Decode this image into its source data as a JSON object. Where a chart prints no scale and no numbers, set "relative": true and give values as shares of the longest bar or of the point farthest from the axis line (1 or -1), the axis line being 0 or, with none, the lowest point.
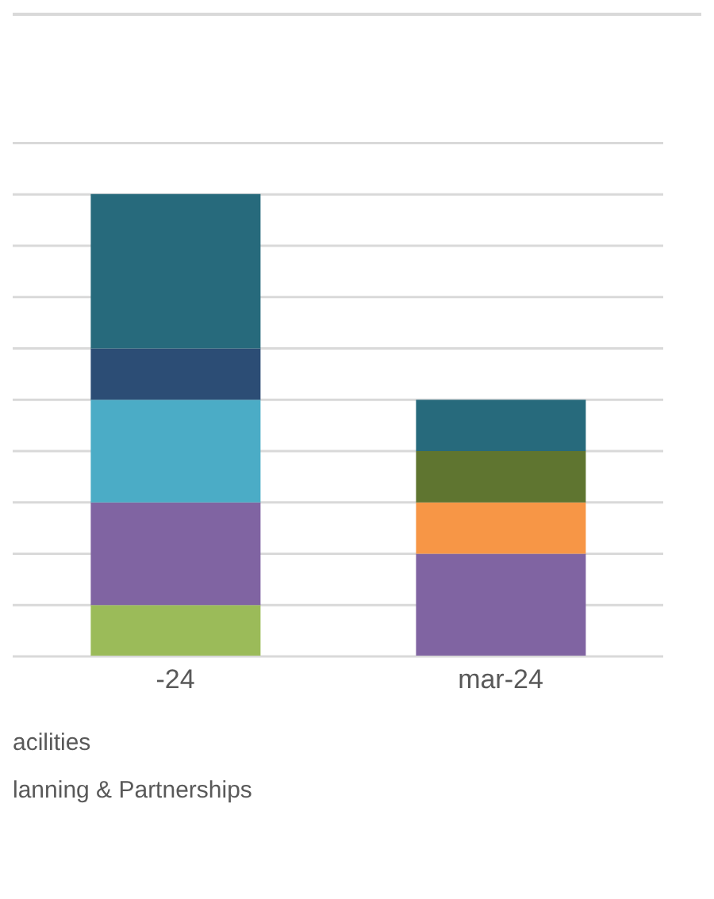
{
  "chart_data": {
    "type": "bar",
    "stacked": true,
    "relative": true,
    "grid": "y",
    "legend": false,
    "categories": [
      "-24",
      "mar-24"
    ],
    "series": [
      {
        "color": "#9bbb59",
        "values": [
          0.111,
          null
        ]
      },
      {
        "color": "#8064a2",
        "values": [
          0.222,
          0.222
        ]
      },
      {
        "color": "#4bacc6",
        "values": [
          0.222,
          null
        ]
      },
      {
        "color": "#f79646",
        "values": [
          null,
          0.111
        ]
      },
      {
        "color": "#5f7530",
        "values": [
          null,
          0.111
        ]
      },
      {
        "color": "#2c4d75",
        "values": [
          0.111,
          null
        ]
      },
      {
        "color": "#276a7c",
        "values": [
          0.334,
          0.111
        ]
      }
    ],
    "annotations": [
      "acilities",
      "lanning & Partnerships"
    ]
  }
}
